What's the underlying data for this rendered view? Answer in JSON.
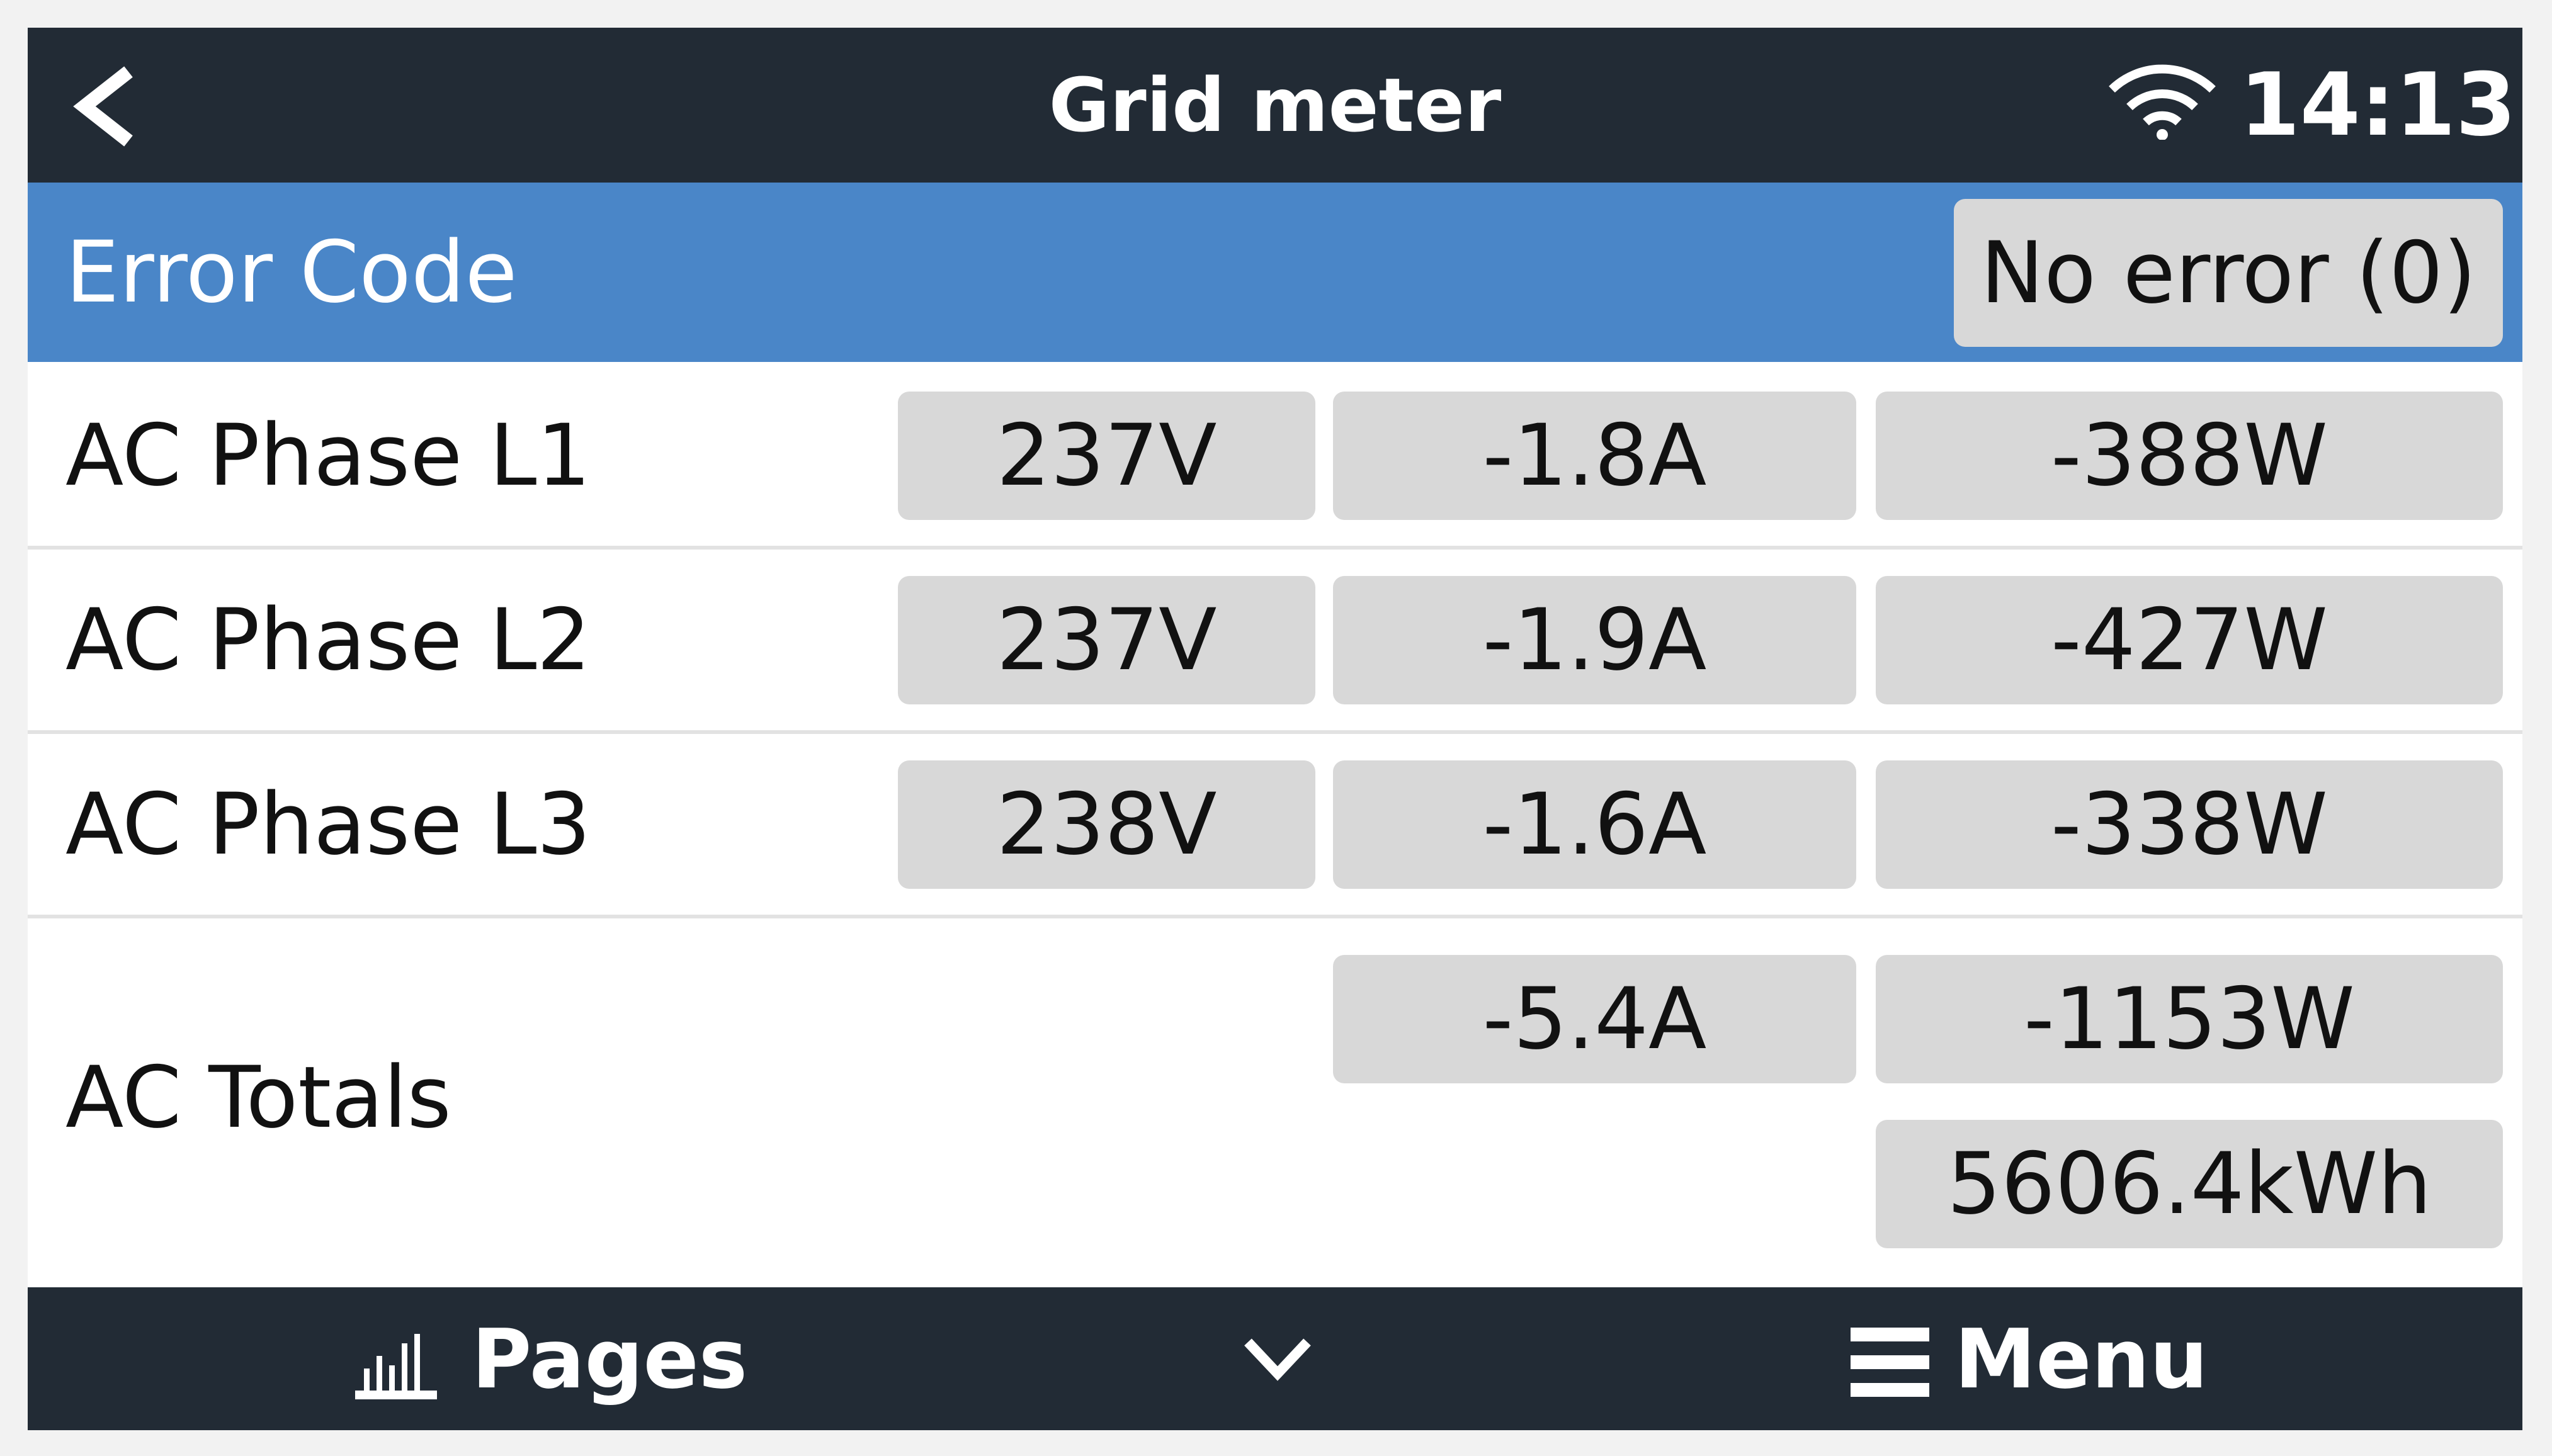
{
  "header": {
    "title": "Grid meter",
    "time": "14:13",
    "back_icon": "chevron-left-icon",
    "wifi_icon": "wifi-icon"
  },
  "error": {
    "label": "Error Code",
    "value": "No error (0)",
    "color": "#4a86c8"
  },
  "phases": [
    {
      "label": "AC Phase L1",
      "voltage": "237V",
      "current": "-1.8A",
      "power": "-388W"
    },
    {
      "label": "AC Phase L2",
      "voltage": "237V",
      "current": "-1.9A",
      "power": "-427W"
    },
    {
      "label": "AC Phase L3",
      "voltage": "238V",
      "current": "-1.6A",
      "power": "-338W"
    }
  ],
  "totals": {
    "label": "AC Totals",
    "current": "-5.4A",
    "power": "-1153W",
    "energy": "5606.4kWh"
  },
  "footer": {
    "pages_label": "Pages",
    "menu_label": "Menu",
    "pages_icon": "bar-chart-icon",
    "center_icon": "chevron-down-icon",
    "menu_icon": "hamburger-icon"
  },
  "colors": {
    "bar": "#222b35",
    "cell": "#d8d8d8"
  }
}
